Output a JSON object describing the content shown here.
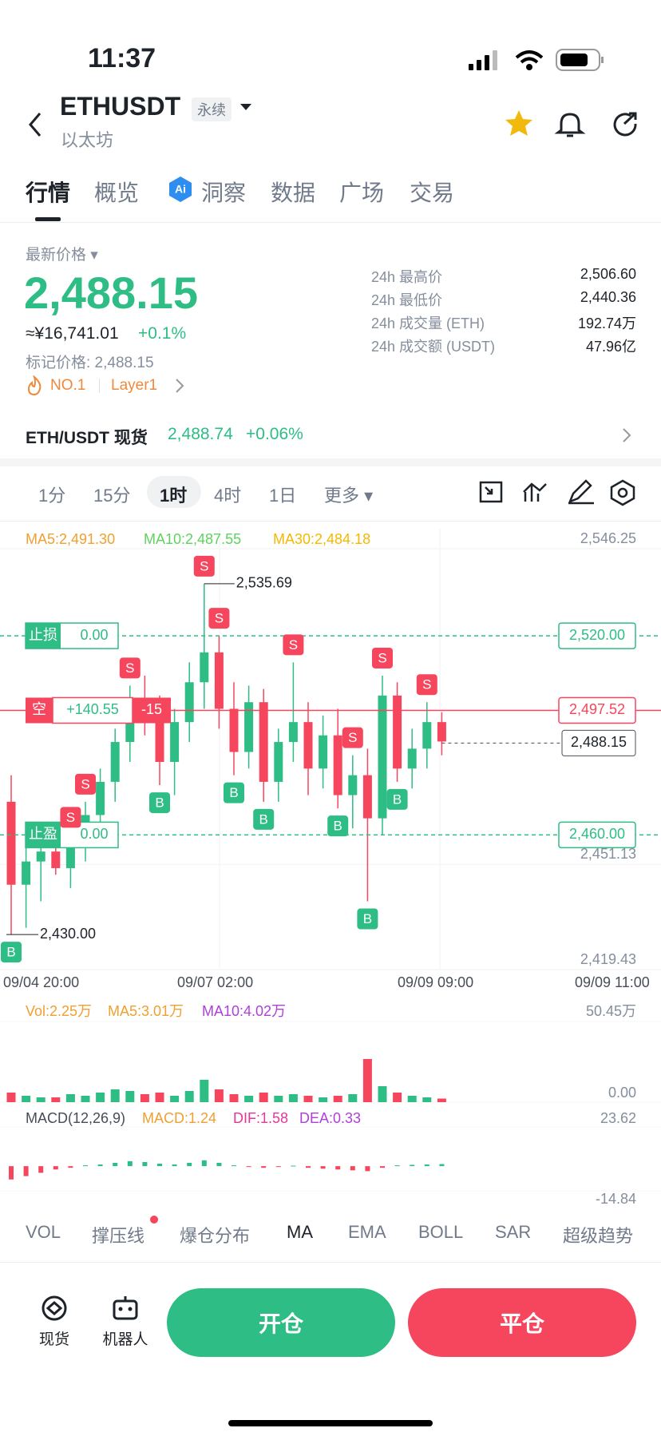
{
  "status_bar": {
    "time": "11:37"
  },
  "header": {
    "symbol": "ETHUSDT",
    "tag": "永续",
    "name": "以太坊"
  },
  "tabs": [
    "行情",
    "概览",
    "洞察",
    "数据",
    "广场",
    "交易"
  ],
  "price_panel": {
    "label": "最新价格",
    "price": "2,488.15",
    "cny": "≈¥16,741.01",
    "change": "+0.1%",
    "mark_price": "标记价格: 2,488.15",
    "rank": "NO.1",
    "tag": "Layer1",
    "stats": [
      {
        "label": "24h 最高价",
        "value": "2,506.60"
      },
      {
        "label": "24h 最低价",
        "value": "2,440.36"
      },
      {
        "label": "24h 成交量 (ETH)",
        "value": "192.74万"
      },
      {
        "label": "24h 成交额 (USDT)",
        "value": "47.96亿"
      }
    ]
  },
  "spot": {
    "pair": "ETH/USDT 现货",
    "price": "2,488.74",
    "change": "+0.06%"
  },
  "intervals": [
    "1分",
    "15分",
    "1时",
    "4时",
    "1日",
    "更多"
  ],
  "chart_data": [
    {
      "type": "candlestick",
      "legend": [
        {
          "text": "MA5:2,491.30",
          "color": "#f0a030"
        },
        {
          "text": "MA10:2,487.55",
          "color": "#5fd35f"
        },
        {
          "text": "MA30:2,484.18",
          "color": "#f5b800"
        }
      ],
      "up_color": "#2ebd85",
      "down_color": "#f6465d",
      "ohlc": [
        [
          2470,
          2478,
          2430,
          2445
        ],
        [
          2445,
          2458,
          2432,
          2452
        ],
        [
          2452,
          2460,
          2440,
          2455
        ],
        [
          2455,
          2462,
          2448,
          2450
        ],
        [
          2450,
          2460,
          2444,
          2458
        ],
        [
          2458,
          2470,
          2452,
          2466
        ],
        [
          2466,
          2480,
          2460,
          2476
        ],
        [
          2476,
          2492,
          2470,
          2488
        ],
        [
          2488,
          2505,
          2482,
          2500
        ],
        [
          2500,
          2508,
          2490,
          2496
        ],
        [
          2496,
          2502,
          2475,
          2482
        ],
        [
          2482,
          2498,
          2472,
          2494
        ],
        [
          2494,
          2512,
          2488,
          2506
        ],
        [
          2506,
          2535.69,
          2498,
          2515
        ],
        [
          2515,
          2520,
          2492,
          2498
        ],
        [
          2498,
          2506,
          2478,
          2485
        ],
        [
          2485,
          2505,
          2480,
          2500
        ],
        [
          2500,
          2504,
          2470,
          2476
        ],
        [
          2476,
          2492,
          2470,
          2488
        ],
        [
          2488,
          2512,
          2482,
          2494
        ],
        [
          2494,
          2500,
          2472,
          2480
        ],
        [
          2480,
          2496,
          2474,
          2490
        ],
        [
          2490,
          2498,
          2468,
          2472
        ],
        [
          2472,
          2484,
          2462,
          2478
        ],
        [
          2478,
          2486,
          2440,
          2465
        ],
        [
          2465,
          2508,
          2460,
          2502
        ],
        [
          2502,
          2506,
          2476,
          2480
        ],
        [
          2480,
          2492,
          2474,
          2486
        ],
        [
          2486,
          2500,
          2480,
          2494
        ],
        [
          2494,
          2497,
          2484,
          2488.15
        ]
      ],
      "ylim": [
        2419.43,
        2546.25
      ],
      "yticks": [
        {
          "value": 2546.25,
          "label": "2,546.25"
        },
        {
          "value": 2451.13,
          "label": "2,451.13"
        },
        {
          "value": 2419.43,
          "label": "2,419.43"
        }
      ],
      "x_labels": [
        "09/04 20:00",
        "09/07 02:00",
        "09/09 09:00",
        "09/09 11:00"
      ],
      "high": {
        "value": 2535.69,
        "label": "2,535.69"
      },
      "low": {
        "value": 2430,
        "label": "2,430.00"
      },
      "orders": [
        {
          "name": "止损",
          "qty": "0.00",
          "value": 2520,
          "label": "2,520.00"
        },
        {
          "name": "止盈",
          "qty": "0.00",
          "value": 2460,
          "label": "2,460.00"
        }
      ],
      "position": {
        "side": "空",
        "pnl": "+140.55",
        "qty": "-15",
        "value": 2497.52,
        "label": "2,497.52"
      },
      "last": {
        "value": 2488.15,
        "label": "2,488.15"
      },
      "trades": [
        {
          "side": "S",
          "candle": 13
        },
        {
          "side": "S",
          "candle": 8
        },
        {
          "side": "S",
          "candle": 5
        },
        {
          "side": "S",
          "candle": 4
        },
        {
          "side": "S",
          "candle": 14
        },
        {
          "side": "S",
          "candle": 19
        },
        {
          "side": "S",
          "candle": 23
        },
        {
          "side": "S",
          "candle": 25
        },
        {
          "side": "S",
          "candle": 28
        },
        {
          "side": "B",
          "candle": 0
        },
        {
          "side": "B",
          "candle": 10
        },
        {
          "side": "B",
          "candle": 15
        },
        {
          "side": "B",
          "candle": 17
        },
        {
          "side": "B",
          "candle": 22
        },
        {
          "side": "B",
          "candle": 24
        },
        {
          "side": "B",
          "candle": 26
        }
      ]
    },
    {
      "type": "bar",
      "legend": [
        {
          "text": "Vol:2.25万",
          "color": "#f0a030"
        },
        {
          "text": "MA5:3.01万",
          "color": "#f0a030"
        },
        {
          "text": "MA10:4.02万",
          "color": "#b03fd8"
        }
      ],
      "values": [
        6,
        4,
        3,
        3,
        5,
        4,
        6,
        8,
        7,
        5,
        6,
        4,
        7,
        14,
        8,
        5,
        4,
        6,
        4,
        5,
        4,
        3,
        4,
        5,
        27,
        10,
        6,
        4,
        3,
        2.25
      ],
      "ylim": [
        0,
        50.45
      ],
      "yticks": [
        {
          "value": 50.45,
          "label": "50.45万"
        },
        {
          "value": 0,
          "label": "0.00"
        }
      ]
    },
    {
      "type": "bar",
      "legend": [
        {
          "text": "MACD(12,26,9)",
          "color": "#474d57"
        },
        {
          "text": "MACD:1.24",
          "color": "#f0a030"
        },
        {
          "text": "DIF:1.58",
          "color": "#e0389b"
        },
        {
          "text": "DEA:0.33",
          "color": "#b03fd8"
        }
      ],
      "values": [
        -8,
        -6,
        -4,
        -2,
        -1,
        0.5,
        1,
        2,
        3,
        2.5,
        1.5,
        1,
        2,
        3.5,
        2,
        0.5,
        -0.5,
        -1,
        -0.5,
        0.3,
        -1,
        -1.5,
        -2,
        -2.5,
        -3,
        -1,
        0.5,
        0.8,
        1,
        1.24
      ],
      "ylim": [
        -14.84,
        23.62
      ],
      "yticks": [
        23.62,
        -14.84
      ]
    }
  ],
  "indicator_tabs": [
    "VOL",
    "撑压线",
    "爆仓分布",
    "MA",
    "EMA",
    "BOLL",
    "SAR",
    "超级趋势"
  ],
  "bottom_bar": {
    "spot": "现货",
    "bot": "机器人",
    "open": "开仓",
    "close": "平仓"
  }
}
